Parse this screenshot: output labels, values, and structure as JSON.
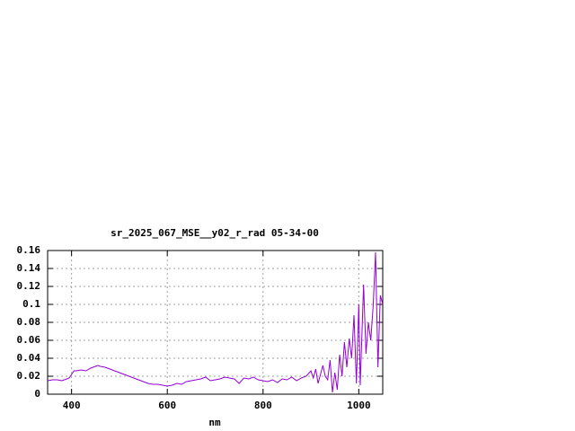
{
  "chart_data": {
    "type": "line",
    "title": "sr_2025_067_MSE__y02_r_rad 05-34-00",
    "x_label": "nm",
    "x": [
      350,
      360,
      370,
      380,
      390,
      395,
      400,
      405,
      410,
      420,
      430,
      440,
      450,
      455,
      460,
      470,
      480,
      490,
      500,
      510,
      520,
      530,
      540,
      550,
      560,
      570,
      580,
      590,
      600,
      610,
      620,
      630,
      640,
      650,
      660,
      670,
      680,
      690,
      700,
      710,
      720,
      730,
      740,
      750,
      760,
      770,
      780,
      790,
      800,
      810,
      820,
      830,
      840,
      850,
      860,
      870,
      880,
      890,
      900,
      905,
      910,
      915,
      920,
      925,
      930,
      935,
      940,
      945,
      950,
      955,
      960,
      965,
      970,
      975,
      980,
      985,
      990,
      995,
      1000,
      1003,
      1010,
      1015,
      1020,
      1025,
      1030,
      1035,
      1040,
      1045,
      1050
    ],
    "series": [
      {
        "color": "#9400d3",
        "values": [
          0.015,
          0.016,
          0.016,
          0.015,
          0.017,
          0.018,
          0.022,
          0.026,
          0.026,
          0.027,
          0.026,
          0.029,
          0.031,
          0.032,
          0.031,
          0.03,
          0.028,
          0.026,
          0.024,
          0.022,
          0.02,
          0.018,
          0.016,
          0.014,
          0.012,
          0.011,
          0.011,
          0.01,
          0.009,
          0.01,
          0.012,
          0.011,
          0.014,
          0.015,
          0.016,
          0.017,
          0.019,
          0.015,
          0.016,
          0.017,
          0.019,
          0.018,
          0.017,
          0.012,
          0.018,
          0.017,
          0.019,
          0.016,
          0.015,
          0.014,
          0.016,
          0.013,
          0.017,
          0.016,
          0.019,
          0.015,
          0.018,
          0.02,
          0.026,
          0.018,
          0.028,
          0.012,
          0.022,
          0.032,
          0.02,
          0.016,
          0.038,
          0.002,
          0.024,
          0.005,
          0.044,
          0.02,
          0.058,
          0.03,
          0.062,
          0.04,
          0.088,
          0.012,
          0.1,
          0.01,
          0.122,
          0.045,
          0.08,
          0.06,
          0.098,
          0.158,
          0.03,
          0.11,
          0.1
        ]
      }
    ],
    "xlim": [
      350,
      1050
    ],
    "xticks": [
      400,
      600,
      800,
      1000
    ],
    "ylim": [
      0,
      0.16
    ],
    "yticks": [
      0,
      0.02,
      0.04,
      0.06,
      0.08,
      0.1,
      0.12,
      0.14,
      0.16
    ],
    "grid": true
  }
}
